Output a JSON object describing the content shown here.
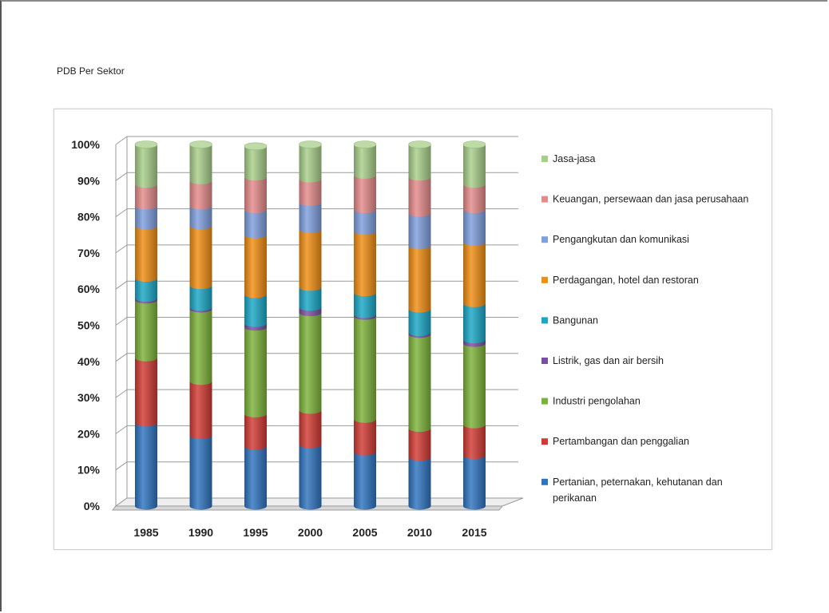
{
  "document": {
    "title": "PDB Per Sektor"
  },
  "chart_data": {
    "type": "bar",
    "stacked": "percent",
    "style": "3d-cylinder",
    "title": "",
    "xlabel": "",
    "ylabel": "",
    "ylim": [
      0,
      100
    ],
    "y_ticks": [
      "0%",
      "10%",
      "20%",
      "30%",
      "40%",
      "50%",
      "60%",
      "70%",
      "80%",
      "90%",
      "100%"
    ],
    "categories": [
      "1985",
      "1990",
      "1995",
      "2000",
      "2005",
      "2010",
      "2015"
    ],
    "legend_position": "right",
    "grid": true,
    "series": [
      {
        "name": "Pertanian, peternakan, kehutanan dan perikanan",
        "color": "#2f74c0",
        "values": [
          23,
          19.5,
          16.5,
          17,
          15,
          13.5,
          14
        ]
      },
      {
        "name": "Pertambangan dan penggalian",
        "color": "#d23a33",
        "values": [
          18,
          15,
          9,
          9.5,
          9,
          8,
          8.5
        ]
      },
      {
        "name": "Industri pengolahan",
        "color": "#7db239",
        "values": [
          16,
          20,
          24,
          27,
          28.5,
          26,
          22.5
        ]
      },
      {
        "name": "Listrik, gas dan air bersih",
        "color": "#7a4fa3",
        "values": [
          0.5,
          0.5,
          1,
          1.5,
          0.5,
          0.5,
          1
        ]
      },
      {
        "name": "Bangunan",
        "color": "#1aa7c6",
        "values": [
          5.5,
          6,
          8,
          5.5,
          6,
          6.5,
          10
        ]
      },
      {
        "name": "Perdagangan, hotel dan restoran",
        "color": "#f08d12",
        "values": [
          14.5,
          16.5,
          16.5,
          16,
          17,
          17.5,
          17
        ]
      },
      {
        "name": "Pengangkutan dan komunikasi",
        "color": "#7f9fde",
        "values": [
          5.5,
          5.5,
          7,
          7.5,
          6,
          9,
          9
        ]
      },
      {
        "name": "Keuangan, persewaan dan jasa perusahaan",
        "color": "#e58a8a",
        "values": [
          6,
          7,
          9,
          6.5,
          9.5,
          10,
          7
        ]
      },
      {
        "name": "Jasa-jasa",
        "color": "#a8cf8a",
        "values": [
          11,
          10,
          8.5,
          9.5,
          8.5,
          9,
          11
        ]
      }
    ]
  }
}
